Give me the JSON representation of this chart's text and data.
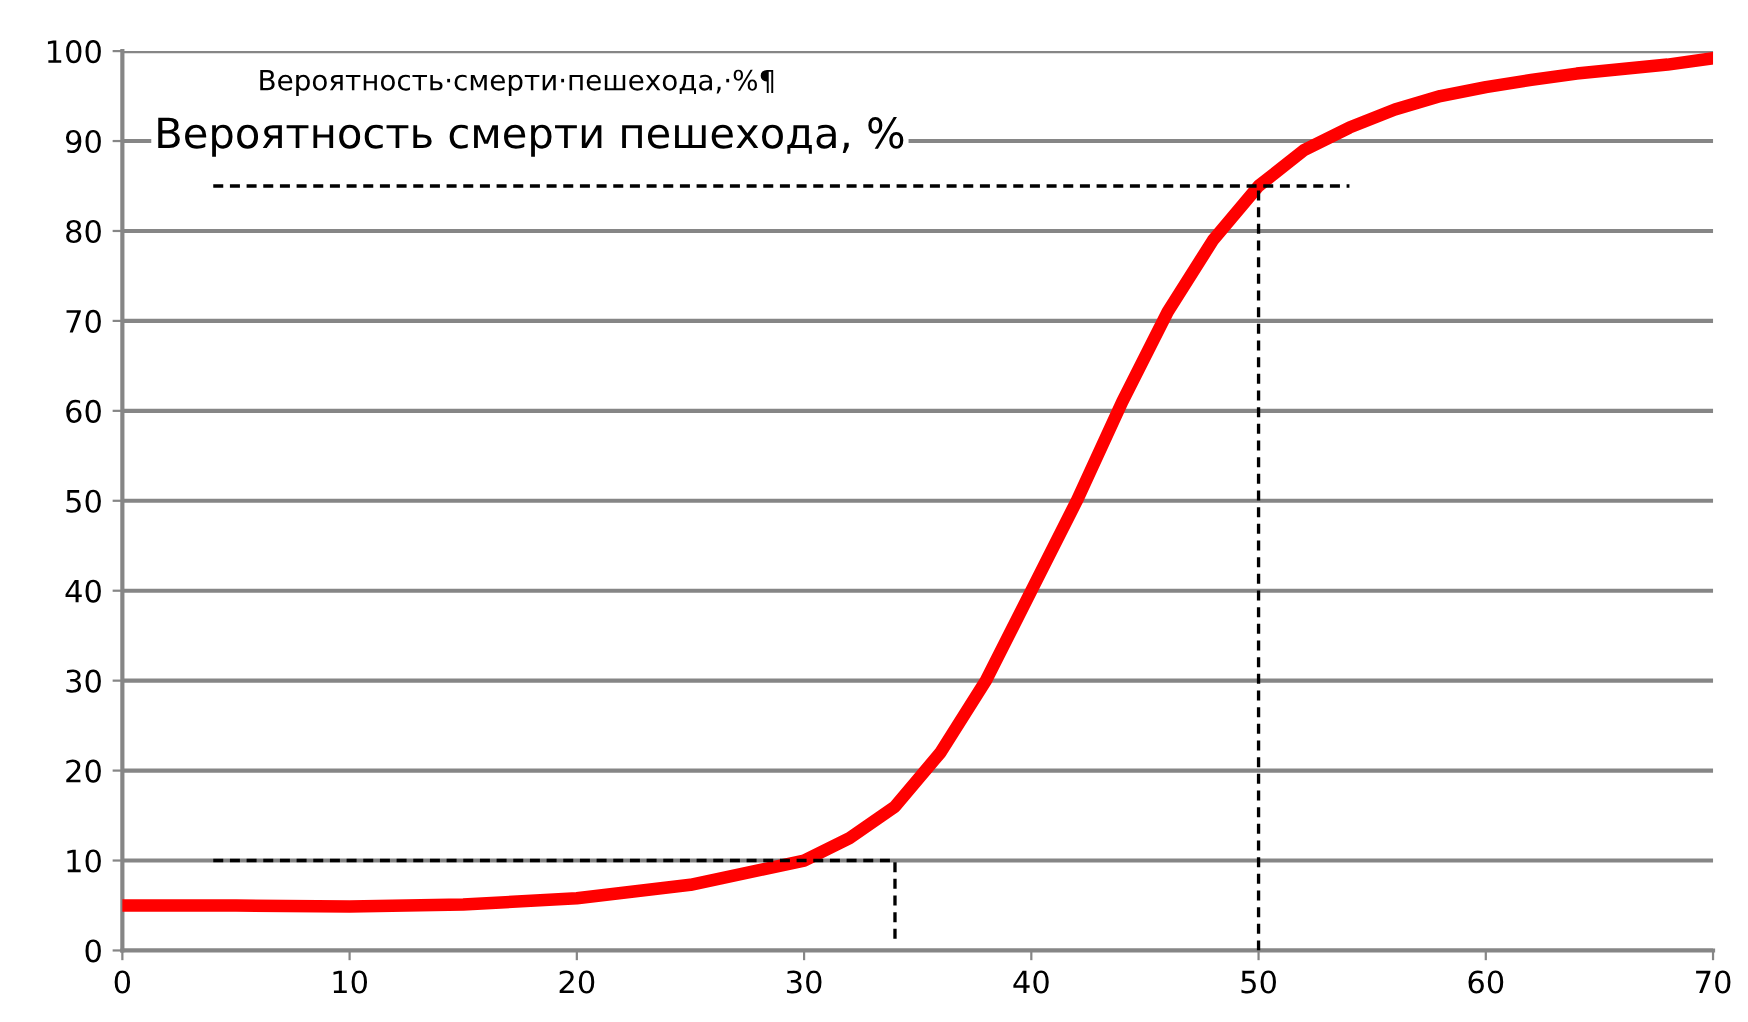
{
  "chart_data": {
    "type": "line",
    "title": "Вероятность смерти пешехода, %",
    "annotations": [
      "Вероятность·смерти·пешехода,·%¶"
    ],
    "xlim": [
      0,
      70
    ],
    "xticks": [
      0,
      10,
      20,
      30,
      40,
      50,
      60,
      70
    ],
    "ylim": [
      0,
      100
    ],
    "yticks": [
      0,
      10,
      20,
      30,
      40,
      50,
      60,
      70,
      80,
      90,
      100
    ],
    "grid": "y",
    "series": [
      {
        "color": "#ff0000",
        "x": [
          0,
          5,
          10,
          15,
          20,
          25,
          30,
          32,
          34,
          36,
          38,
          40,
          42,
          44,
          46,
          48,
          50,
          52,
          54,
          56,
          58,
          60,
          62,
          64,
          66,
          68,
          70
        ],
        "values": [
          5,
          5,
          4.9,
          5.1,
          5.8,
          7.3,
          10,
          12.5,
          16,
          22,
          30,
          40,
          50,
          61,
          71,
          79,
          85,
          89,
          91.5,
          93.5,
          95,
          96,
          96.8,
          97.5,
          98,
          98.5,
          99.2
        ]
      },
      {
        "color": "#000000",
        "line_style": "dashed",
        "x": [
          4,
          34,
          34
        ],
        "values": [
          10,
          10,
          1
        ]
      },
      {
        "color": "#000000",
        "line_style": "dashed",
        "x": [
          4,
          54
        ],
        "values": [
          85,
          85
        ]
      },
      {
        "color": "#000000",
        "line_style": "dashed",
        "x": [
          50,
          50
        ],
        "values": [
          0,
          85
        ]
      }
    ]
  }
}
